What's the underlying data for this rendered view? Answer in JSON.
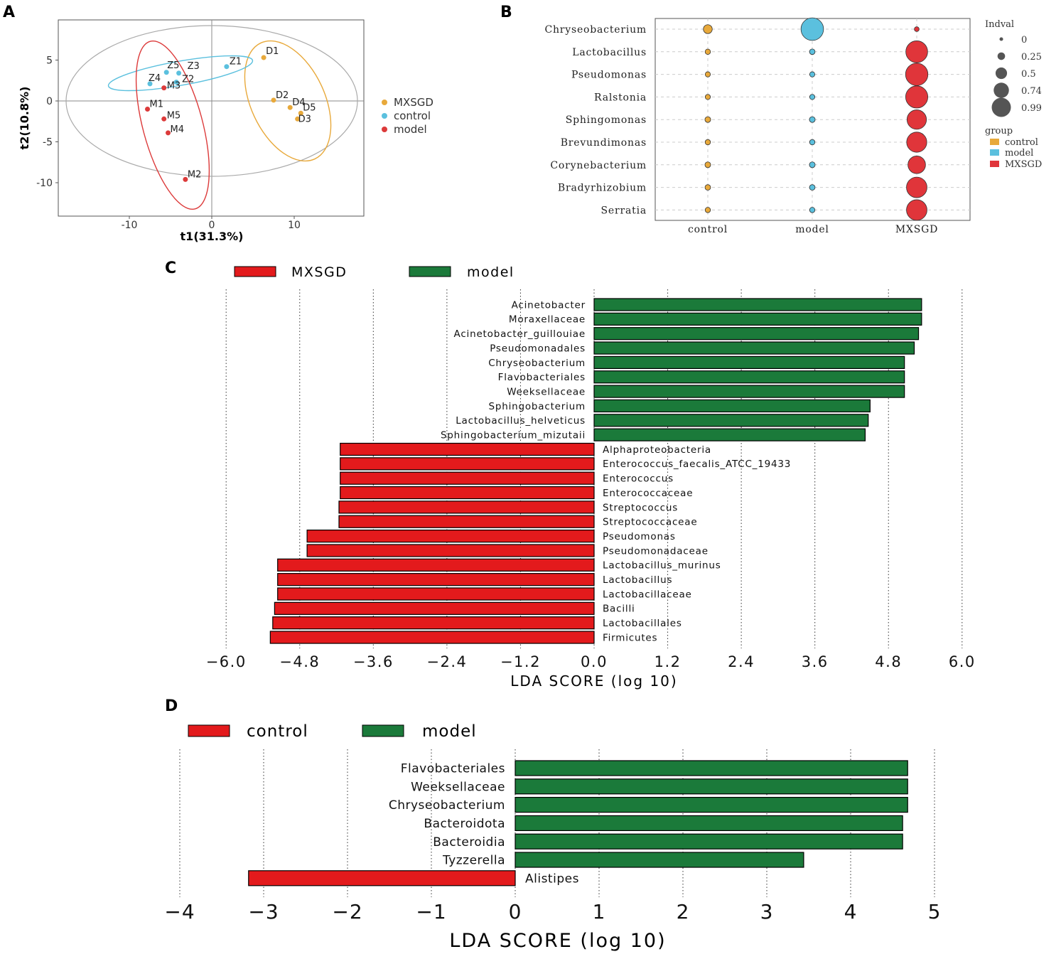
{
  "panel_labels": [
    "A",
    "B",
    "C",
    "D"
  ],
  "colors": {
    "mxsgd_orange": "#e8a93b",
    "control_blue": "#5bc0de",
    "model_red": "#dc3a3a",
    "bar_red": "#e31a1c",
    "bar_green": "#1b7a3a",
    "bubble_red": "#e0353a"
  },
  "chart_data": [
    {
      "id": "A",
      "type": "scatter",
      "title": "",
      "xlabel": "t1(31.3%)",
      "ylabel": "t2(10.8%)",
      "xlim": [
        -18,
        18
      ],
      "ylim": [
        -14,
        10
      ],
      "xticks": [
        -10,
        0,
        10
      ],
      "yticks": [
        5,
        0,
        -5,
        -10
      ],
      "legend": [
        "MXSGD",
        "control",
        "model"
      ],
      "points": [
        {
          "label": "D1",
          "group": "MXSGD",
          "x": 6.3,
          "y": 5.3
        },
        {
          "label": "D2",
          "group": "MXSGD",
          "x": 7.5,
          "y": 0.1
        },
        {
          "label": "D4",
          "group": "MXSGD",
          "x": 9.5,
          "y": -0.8
        },
        {
          "label": "D5",
          "group": "MXSGD",
          "x": 10.8,
          "y": -1.5
        },
        {
          "label": "D3",
          "group": "MXSGD",
          "x": 10.4,
          "y": -2.2
        },
        {
          "label": "Z1",
          "group": "control",
          "x": 1.8,
          "y": 4.2
        },
        {
          "label": "Z5",
          "group": "control",
          "x": -5.5,
          "y": 3.5
        },
        {
          "label": "Z3",
          "group": "control",
          "x": -4,
          "y": 3.4
        },
        {
          "label": "Z2",
          "group": "control",
          "x": -4.3,
          "y": 2.3
        },
        {
          "label": "Z4",
          "group": "control",
          "x": -7.5,
          "y": 2.1
        },
        {
          "label": "M3",
          "group": "model",
          "x": -5.8,
          "y": 1.6
        },
        {
          "label": "M1",
          "group": "model",
          "x": -7.8,
          "y": -1
        },
        {
          "label": "M5",
          "group": "model",
          "x": -5.8,
          "y": -2.2
        },
        {
          "label": "M4",
          "group": "model",
          "x": -5.3,
          "y": -3.9
        },
        {
          "label": "M2",
          "group": "model",
          "x": -3.2,
          "y": -9.6
        }
      ]
    },
    {
      "id": "B",
      "type": "scatter",
      "title": "",
      "xcategories": [
        "control",
        "model",
        "MXSGD"
      ],
      "ycategories": [
        "Chryseobacterium",
        "Lactobacillus",
        "Pseudomonas",
        "Ralstonia",
        "Sphingomonas",
        "Brevundimonas",
        "Corynebacterium",
        "Bradyrhizobium",
        "Serratia"
      ],
      "size_legend_title": "Indval",
      "size_legend": [
        "0",
        "0.25",
        "0.5",
        "0.74",
        "0.99"
      ],
      "group_legend_title": "group",
      "group_legend": [
        "control",
        "model",
        "MXSGD"
      ],
      "indval": [
        [
          0.25,
          0.99,
          0.03
        ],
        [
          0.06,
          0.07,
          0.95
        ],
        [
          0.05,
          0.05,
          0.98
        ],
        [
          0.05,
          0.05,
          0.97
        ],
        [
          0.08,
          0.08,
          0.82
        ],
        [
          0.06,
          0.06,
          0.86
        ],
        [
          0.08,
          0.08,
          0.72
        ],
        [
          0.07,
          0.07,
          0.88
        ],
        [
          0.06,
          0.06,
          0.88
        ]
      ]
    },
    {
      "id": "C",
      "type": "bar",
      "orientation": "horizontal",
      "title": "",
      "xlabel": "LDA SCORE (log 10)",
      "legend": [
        "MXSGD",
        "model"
      ],
      "xlim": [
        -6,
        6
      ],
      "xticks": [
        "−6.0",
        "−4.8",
        "−3.6",
        "−2.4",
        "−1.2",
        "0.0",
        "1.2",
        "2.4",
        "3.6",
        "4.8",
        "6.0"
      ],
      "xtick_values": [
        -6,
        -4.8,
        -3.6,
        -2.4,
        -1.2,
        0,
        1.2,
        2.4,
        3.6,
        4.8,
        6
      ],
      "categories": [
        "Acinetobacter",
        "Moraxellaceae",
        "Acinetobacter_guillouiae",
        "Pseudomonadales",
        "Chryseobacterium",
        "Flavobacteriales",
        "Weeksellaceae",
        "Sphingobacterium",
        "Lactobacillus_helveticus",
        "Sphingobacterium_mizutaii",
        "Alphaproteobacteria",
        "Enterococcus_faecalis_ATCC_19433",
        "Enterococcus",
        "Enterococcaceae",
        "Streptococcus",
        "Streptococcaceae",
        "Pseudomonas",
        "Pseudomonadaceae",
        "Lactobacillus_murinus",
        "Lactobacillus",
        "Lactobacillaceae",
        "Bacilli",
        "Lactobacillales",
        "Firmicutes"
      ],
      "values": [
        5.34,
        5.34,
        5.29,
        5.22,
        5.06,
        5.06,
        5.06,
        4.5,
        4.47,
        4.42,
        -4.14,
        -4.14,
        -4.14,
        -4.14,
        -4.16,
        -4.16,
        -4.68,
        -4.68,
        -5.16,
        -5.16,
        -5.16,
        -5.21,
        -5.24,
        -5.28
      ],
      "groups": [
        "model",
        "model",
        "model",
        "model",
        "model",
        "model",
        "model",
        "model",
        "model",
        "model",
        "MXSGD",
        "MXSGD",
        "MXSGD",
        "MXSGD",
        "MXSGD",
        "MXSGD",
        "MXSGD",
        "MXSGD",
        "MXSGD",
        "MXSGD",
        "MXSGD",
        "MXSGD",
        "MXSGD",
        "MXSGD"
      ]
    },
    {
      "id": "D",
      "type": "bar",
      "orientation": "horizontal",
      "title": "",
      "xlabel": "LDA SCORE (log 10)",
      "legend": [
        "control",
        "model"
      ],
      "xlim": [
        -4,
        5
      ],
      "xticks": [
        "−4",
        "−3",
        "−2",
        "−1",
        "0",
        "1",
        "2",
        "3",
        "4",
        "5"
      ],
      "xtick_values": [
        -4,
        -3,
        -2,
        -1,
        0,
        1,
        2,
        3,
        4,
        5
      ],
      "categories": [
        "Flavobacteriales",
        "Weeksellaceae",
        "Chryseobacterium",
        "Bacteroidota",
        "Bacteroidia",
        "Tyzzerella",
        "Alistipes"
      ],
      "values": [
        4.68,
        4.68,
        4.68,
        4.62,
        4.62,
        3.44,
        -3.18
      ],
      "groups": [
        "model",
        "model",
        "model",
        "model",
        "model",
        "model",
        "control"
      ]
    }
  ]
}
